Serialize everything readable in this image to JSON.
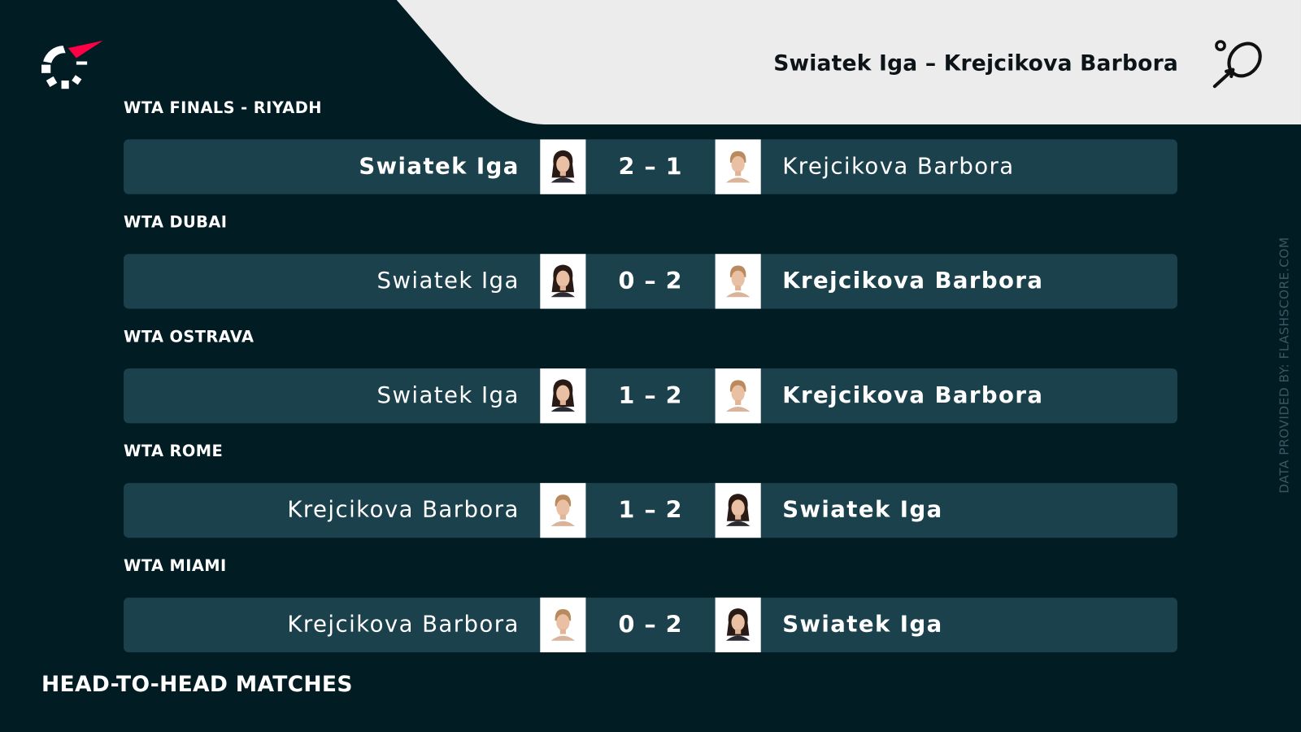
{
  "header": {
    "title": "Swiatek Iga – Krejcikova Barbora",
    "logo": "flashscore-logo",
    "sport_icon": "tennis-racket-icon"
  },
  "colors": {
    "background": "#021c24",
    "row": "#1b414c",
    "header_panel": "#ececec",
    "accent": "#ff0046"
  },
  "matches": [
    {
      "tournament": "WTA FINALS - RIYADH",
      "left": "Swiatek Iga",
      "right": "Krejcikova Barbora",
      "score": "2 – 1",
      "winner": "left",
      "left_avatar": "swiatek",
      "right_avatar": "krejcikova"
    },
    {
      "tournament": "WTA DUBAI",
      "left": "Swiatek Iga",
      "right": "Krejcikova Barbora",
      "score": "0 – 2",
      "winner": "right",
      "left_avatar": "swiatek",
      "right_avatar": "krejcikova"
    },
    {
      "tournament": "WTA OSTRAVA",
      "left": "Swiatek Iga",
      "right": "Krejcikova Barbora",
      "score": "1 – 2",
      "winner": "right",
      "left_avatar": "swiatek",
      "right_avatar": "krejcikova"
    },
    {
      "tournament": "WTA ROME",
      "left": "Krejcikova Barbora",
      "right": "Swiatek Iga",
      "score": "1 – 2",
      "winner": "right",
      "left_avatar": "krejcikova",
      "right_avatar": "swiatek"
    },
    {
      "tournament": "WTA MIAMI",
      "left": "Krejcikova Barbora",
      "right": "Swiatek Iga",
      "score": "0 – 2",
      "winner": "right",
      "left_avatar": "krejcikova",
      "right_avatar": "swiatek"
    }
  ],
  "footer": {
    "title": "HEAD-TO-HEAD MATCHES"
  },
  "credit": "DATA PROVIDED BY: FLASHSCORE.COM"
}
